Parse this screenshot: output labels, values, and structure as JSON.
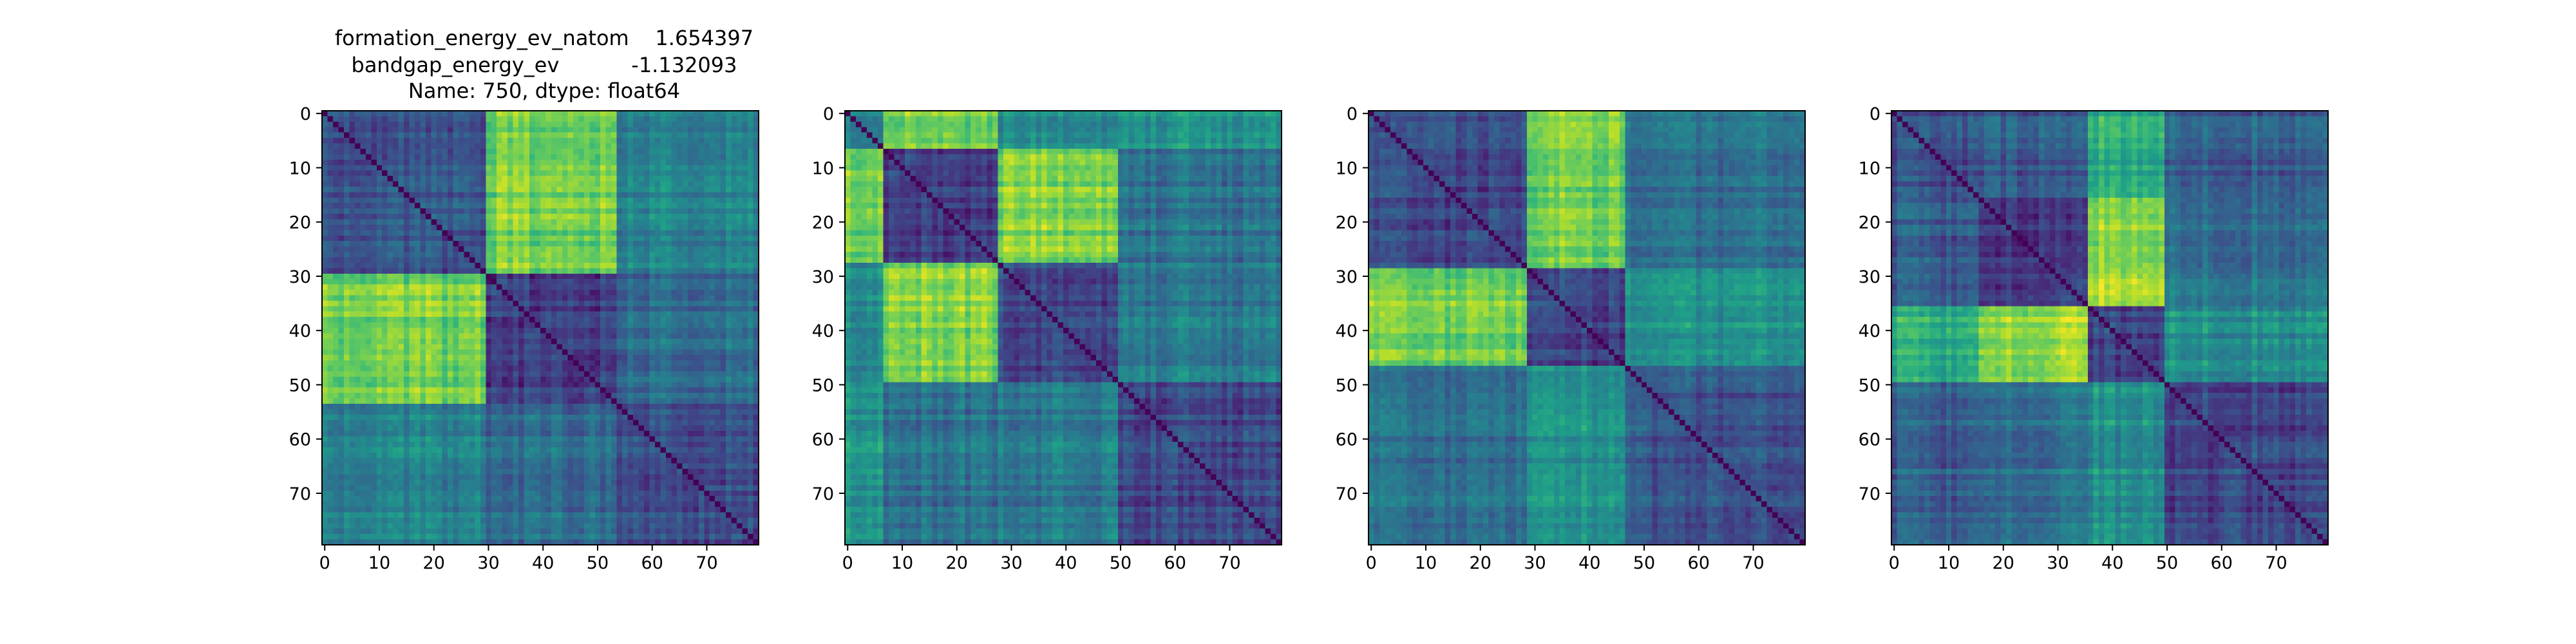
{
  "figure": {
    "background": "#ffffff",
    "title_lines": [
      "formation_energy_ev_natom    1.654397",
      "bandgap_energy_ev           -1.132093",
      "Name: 750, dtype: float64"
    ]
  },
  "chart_data": [
    {
      "type": "heatmap",
      "colormap": "viridis",
      "n": 80,
      "blocks": [
        0,
        30,
        54,
        80
      ],
      "block_levels": [
        [
          0.26,
          0.8,
          0.45
        ],
        [
          0.8,
          0.2,
          0.36
        ],
        [
          0.45,
          0.36,
          0.22
        ]
      ],
      "xticks": [
        0,
        10,
        20,
        30,
        40,
        50,
        60,
        70
      ],
      "yticks": [
        0,
        10,
        20,
        30,
        40,
        50,
        60,
        70
      ],
      "xlim": [
        -0.5,
        79.5
      ],
      "ylim": [
        79.5,
        -0.5
      ],
      "grid": false
    },
    {
      "type": "heatmap",
      "colormap": "viridis",
      "n": 80,
      "blocks": [
        0,
        7,
        28,
        50,
        80
      ],
      "block_levels": [
        [
          0.45,
          0.78,
          0.48,
          0.52
        ],
        [
          0.78,
          0.18,
          0.82,
          0.38
        ],
        [
          0.48,
          0.82,
          0.22,
          0.4
        ],
        [
          0.52,
          0.38,
          0.4,
          0.22
        ]
      ],
      "xticks": [
        0,
        10,
        20,
        30,
        40,
        50,
        60,
        70
      ],
      "yticks": [
        0,
        10,
        20,
        30,
        40,
        50,
        60,
        70
      ],
      "xlim": [
        -0.5,
        79.5
      ],
      "ylim": [
        79.5,
        -0.5
      ],
      "grid": false
    },
    {
      "type": "heatmap",
      "colormap": "viridis",
      "n": 80,
      "blocks": [
        0,
        29,
        47,
        80
      ],
      "block_levels": [
        [
          0.2,
          0.78,
          0.35
        ],
        [
          0.78,
          0.2,
          0.5
        ],
        [
          0.35,
          0.5,
          0.24
        ]
      ],
      "xticks": [
        0,
        10,
        20,
        30,
        40,
        50,
        60,
        70
      ],
      "yticks": [
        0,
        10,
        20,
        30,
        40,
        50,
        60,
        70
      ],
      "xlim": [
        -0.5,
        79.5
      ],
      "ylim": [
        79.5,
        -0.5
      ],
      "grid": false
    },
    {
      "type": "heatmap",
      "colormap": "viridis",
      "n": 80,
      "blocks": [
        0,
        16,
        36,
        50,
        80
      ],
      "block_levels": [
        [
          0.22,
          0.28,
          0.62,
          0.3
        ],
        [
          0.28,
          0.18,
          0.85,
          0.38
        ],
        [
          0.62,
          0.85,
          0.2,
          0.5
        ],
        [
          0.3,
          0.38,
          0.5,
          0.22
        ]
      ],
      "xticks": [
        0,
        10,
        20,
        30,
        40,
        50,
        60,
        70
      ],
      "yticks": [
        0,
        10,
        20,
        30,
        40,
        50,
        60,
        70
      ],
      "xlim": [
        -0.5,
        79.5
      ],
      "ylim": [
        79.5,
        -0.5
      ],
      "grid": false
    }
  ]
}
